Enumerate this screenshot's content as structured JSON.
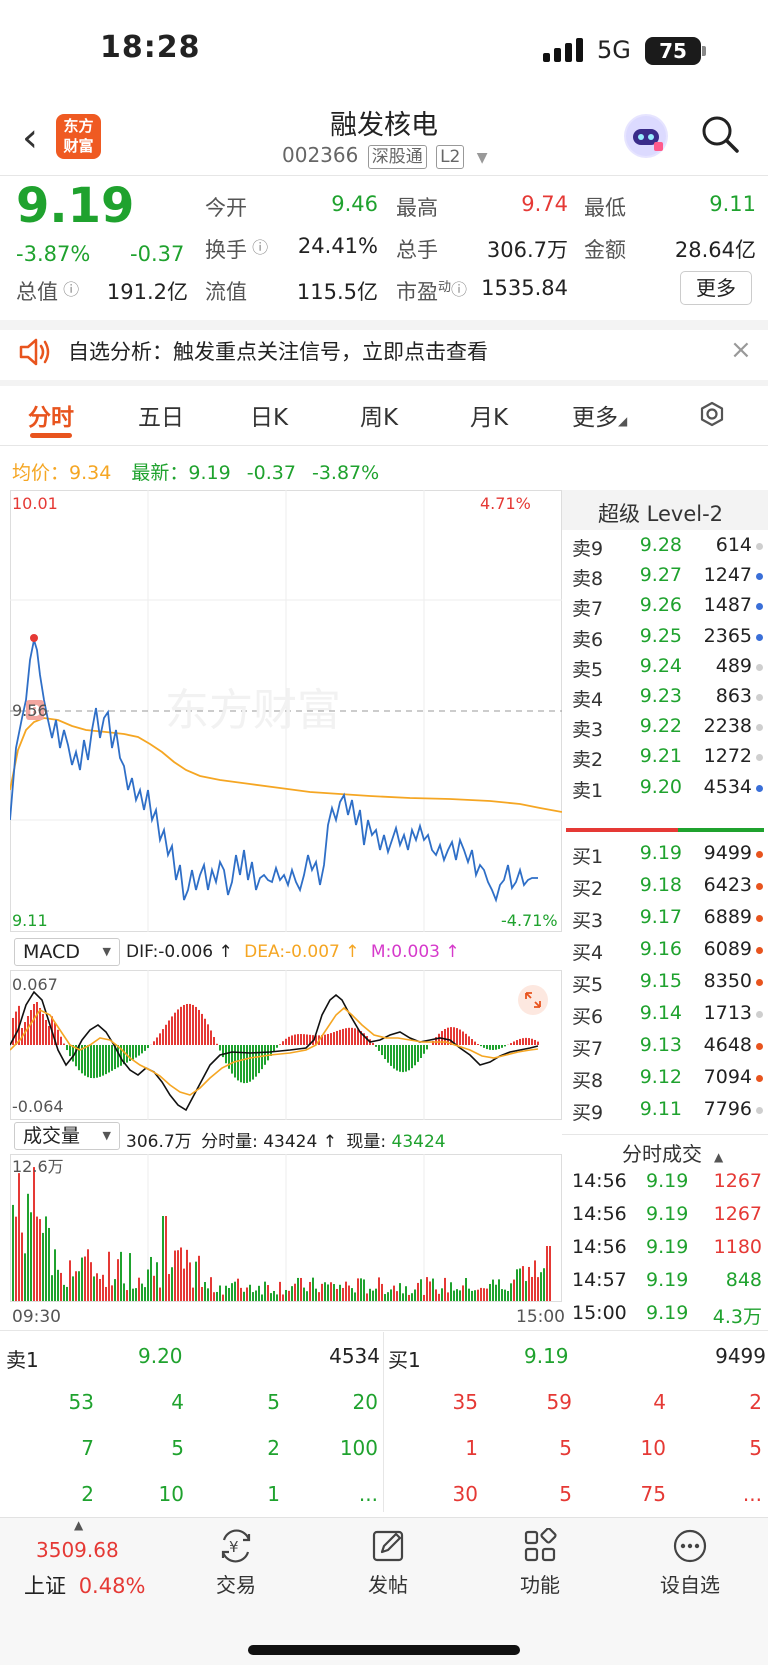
{
  "status": {
    "time": "18:28",
    "network": "5G",
    "battery": "75"
  },
  "header": {
    "logo_line1": "东方",
    "logo_line2": "财富",
    "name": "融发核电",
    "code": "002366",
    "tag1": "深股通",
    "tag2": "L2"
  },
  "quote": {
    "price": "9.19",
    "change_pct": "-3.87%",
    "change": "-0.37",
    "open_label": "今开",
    "open": "9.46",
    "high_label": "最高",
    "high": "9.74",
    "low_label": "最低",
    "low": "9.11",
    "turnover_label": "换手",
    "turnover": "24.41%",
    "volume_label": "总手",
    "volume": "306.7万",
    "amount_label": "金额",
    "amount": "28.64亿",
    "mktcap_label": "总值",
    "mktcap": "191.2亿",
    "float_label": "流值",
    "float": "115.5亿",
    "pe_label": "市盈",
    "pe_sup": "动",
    "pe": "1535.84",
    "more": "更多"
  },
  "banner": {
    "text": "自选分析：触发重点关注信号，立即点击查看"
  },
  "tabs": [
    "分时",
    "五日",
    "日K",
    "周K",
    "月K",
    "更多"
  ],
  "avg": {
    "avg_label": "均价：",
    "avg": "9.34",
    "latest_label": "最新：",
    "latest": "9.19",
    "chg": "-0.37",
    "pct": "-3.87%"
  },
  "chart": {
    "ymax": "10.01",
    "ymax_pct": "4.71%",
    "ymid": "9.56",
    "ymin": "9.11",
    "ymin_pct": "-4.71%",
    "watermark": "东方财富",
    "marker": "B",
    "macd_label": "MACD",
    "dif": "DIF:-0.006 ↑",
    "dea": "DEA:-0.007 ↑",
    "m": "M:0.003 ↑",
    "macd_max": "0.067",
    "macd_min": "-0.064",
    "vol_label": "成交量",
    "vol_total": "306.7万",
    "vol_seg_label": "分时量:",
    "vol_seg": "43424 ↑",
    "vol_now_label": "现量:",
    "vol_now": "43424",
    "vol_max": "12.6万",
    "t_start": "09:30",
    "t_end": "15:00"
  },
  "orderbook": {
    "title": "超级 Level-2",
    "asks": [
      {
        "label": "卖9",
        "price": "9.28",
        "vol": "614",
        "dot": "#cfcfcf"
      },
      {
        "label": "卖8",
        "price": "9.27",
        "vol": "1247",
        "dot": "#3a6fd8"
      },
      {
        "label": "卖7",
        "price": "9.26",
        "vol": "1487",
        "dot": "#3a6fd8"
      },
      {
        "label": "卖6",
        "price": "9.25",
        "vol": "2365",
        "dot": "#3a6fd8"
      },
      {
        "label": "卖5",
        "price": "9.24",
        "vol": "489",
        "dot": "#cfcfcf"
      },
      {
        "label": "卖4",
        "price": "9.23",
        "vol": "863",
        "dot": "#cfcfcf"
      },
      {
        "label": "卖3",
        "price": "9.22",
        "vol": "2238",
        "dot": "#cfcfcf"
      },
      {
        "label": "卖2",
        "price": "9.21",
        "vol": "1272",
        "dot": "#cfcfcf"
      },
      {
        "label": "卖1",
        "price": "9.20",
        "vol": "4534",
        "dot": "#3a6fd8"
      }
    ],
    "bids": [
      {
        "label": "买1",
        "price": "9.19",
        "vol": "9499",
        "dot": "#e8541e"
      },
      {
        "label": "买2",
        "price": "9.18",
        "vol": "6423",
        "dot": "#e8541e"
      },
      {
        "label": "买3",
        "price": "9.17",
        "vol": "6889",
        "dot": "#e8541e"
      },
      {
        "label": "买4",
        "price": "9.16",
        "vol": "6089",
        "dot": "#e8541e"
      },
      {
        "label": "买5",
        "price": "9.15",
        "vol": "8350",
        "dot": "#e8541e"
      },
      {
        "label": "买6",
        "price": "9.14",
        "vol": "1713",
        "dot": "#cfcfcf"
      },
      {
        "label": "买7",
        "price": "9.13",
        "vol": "4648",
        "dot": "#e8541e"
      },
      {
        "label": "买8",
        "price": "9.12",
        "vol": "7094",
        "dot": "#e8541e"
      },
      {
        "label": "买9",
        "price": "9.11",
        "vol": "7796",
        "dot": "#cfcfcf"
      }
    ],
    "ticks_title": "分时成交",
    "ticks": [
      {
        "time": "14:56",
        "price": "9.19",
        "vol": "1267",
        "color": "#e53935"
      },
      {
        "time": "14:56",
        "price": "9.19",
        "vol": "1267",
        "color": "#e53935"
      },
      {
        "time": "14:56",
        "price": "9.19",
        "vol": "1180",
        "color": "#e53935"
      },
      {
        "time": "14:57",
        "price": "9.19",
        "vol": "848",
        "color": "#1fa22e"
      },
      {
        "time": "15:00",
        "price": "9.19",
        "vol": "4.3万",
        "color": "#1fa22e"
      }
    ]
  },
  "depth": {
    "sell_label": "卖1",
    "sell_price": "9.20",
    "sell_vol": "4534",
    "buy_label": "买1",
    "buy_price": "9.19",
    "buy_vol": "9499",
    "sell_rows": [
      [
        "53",
        "4",
        "5",
        "20"
      ],
      [
        "7",
        "5",
        "2",
        "100"
      ],
      [
        "2",
        "10",
        "1",
        "..."
      ]
    ],
    "buy_rows": [
      [
        "35",
        "59",
        "4",
        "2"
      ],
      [
        "1",
        "5",
        "10",
        "5"
      ],
      [
        "30",
        "5",
        "75",
        "..."
      ]
    ]
  },
  "nav": {
    "index_value": "3509.68",
    "index_name": "上证",
    "index_pct": "0.48%",
    "items": [
      "交易",
      "发帖",
      "功能",
      "设自选"
    ]
  },
  "colors": {
    "red": "#e53935",
    "green": "#1fa22e",
    "avg_line": "#f5a623",
    "price_line": "#2f6fc7",
    "accent": "#e8541e"
  }
}
